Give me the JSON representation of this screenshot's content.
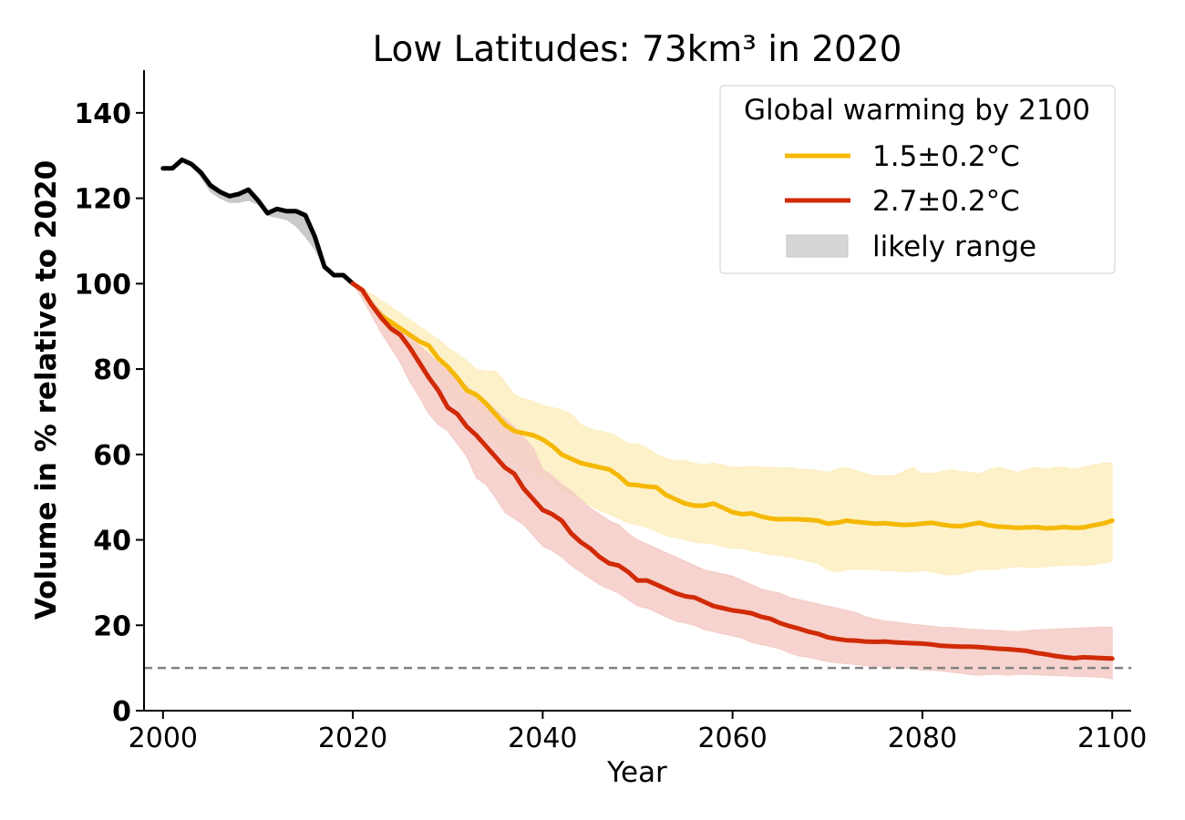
{
  "chart_data": {
    "type": "line",
    "title": "Low Latitudes: 73km³ in 2020",
    "xlabel": "Year",
    "ylabel": "Volume in % relative to 2020",
    "xlim": [
      1998,
      2102
    ],
    "ylim": [
      0,
      150
    ],
    "x_ticks": [
      2000,
      2020,
      2040,
      2060,
      2080,
      2100
    ],
    "y_ticks": [
      0,
      20,
      40,
      60,
      80,
      100,
      120,
      140
    ],
    "grid": false,
    "legend": {
      "title": "Global warming by 2100",
      "position": "top-right",
      "entries": [
        {
          "label": "1.5±0.2°C",
          "color": "#f5b800",
          "kind": "line"
        },
        {
          "label": "2.7±0.2°C",
          "color": "#d12a06",
          "kind": "line"
        },
        {
          "label": "likely range",
          "color": "#d6d6d6",
          "kind": "patch"
        }
      ]
    },
    "reference_line": {
      "y": 10,
      "color": "#808080",
      "style": "dashed"
    },
    "series": [
      {
        "color": "#000000",
        "x": [
          2000,
          2001,
          2002,
          2003,
          2004,
          2005,
          2006,
          2007,
          2008,
          2009,
          2010,
          2011,
          2012,
          2013,
          2014,
          2015,
          2016,
          2017,
          2018,
          2019,
          2020
        ],
        "values": [
          127,
          127,
          129,
          128,
          126,
          123,
          121.5,
          120.5,
          121,
          122,
          119.5,
          116.5,
          117.5,
          117,
          117,
          116,
          111,
          104,
          102,
          102,
          100
        ],
        "range_upper": [
          127,
          127,
          129,
          128,
          126,
          123,
          122,
          121,
          121.5,
          122,
          120,
          117,
          117.5,
          117,
          117,
          116,
          111,
          104,
          102,
          102,
          100
        ],
        "range_lower": [
          127,
          127,
          128.5,
          127.5,
          125,
          121.5,
          120,
          119,
          119,
          119.5,
          118.5,
          116,
          115.5,
          115,
          113.5,
          111,
          108,
          103.5,
          102,
          101.5,
          100
        ],
        "range_color": "#c9c9c9"
      },
      {
        "name": "1.5±0.2°C",
        "color": "#f5b800",
        "range_color": "#fdeec0",
        "x": [
          2020,
          2021,
          2022,
          2023,
          2024,
          2025,
          2026,
          2027,
          2028,
          2029,
          2030,
          2031,
          2032,
          2033,
          2034,
          2035,
          2036,
          2037,
          2038,
          2039,
          2040,
          2041,
          2042,
          2043,
          2044,
          2045,
          2046,
          2047,
          2048,
          2049,
          2050,
          2051,
          2052,
          2053,
          2054,
          2055,
          2056,
          2057,
          2058,
          2059,
          2060,
          2061,
          2062,
          2063,
          2064,
          2065,
          2066,
          2067,
          2068,
          2069,
          2070,
          2071,
          2072,
          2073,
          2074,
          2075,
          2076,
          2077,
          2078,
          2079,
          2080,
          2081,
          2082,
          2083,
          2084,
          2085,
          2086,
          2087,
          2088,
          2089,
          2090,
          2091,
          2092,
          2093,
          2094,
          2095,
          2096,
          2097,
          2098,
          2099,
          2100
        ],
        "values": [
          100,
          98.5,
          95,
          92.5,
          91,
          89.5,
          88,
          86.5,
          85.5,
          82.5,
          80.5,
          78,
          75,
          74,
          72,
          69.5,
          67,
          65.5,
          65,
          64.5,
          63.5,
          62,
          60,
          59,
          58,
          57.5,
          57,
          56.5,
          55,
          53,
          52.8,
          52.5,
          52.3,
          50.5,
          49.5,
          48.5,
          48,
          48,
          48.5,
          47.5,
          46.5,
          46,
          46.2,
          45.5,
          45,
          44.8,
          44.9,
          44.8,
          44.7,
          44.5,
          43.8,
          44,
          44.5,
          44.2,
          44,
          43.8,
          43.9,
          43.7,
          43.5,
          43.6,
          43.8,
          44,
          43.6,
          43.3,
          43.2,
          43.6,
          44,
          43.4,
          43.1,
          43,
          42.8,
          42.9,
          43,
          42.7,
          42.8,
          43,
          42.8,
          42.9,
          43.4,
          43.8,
          44.5
        ],
        "range_upper": [
          100,
          99,
          97.5,
          96,
          94.5,
          93,
          91.5,
          90,
          88.5,
          87,
          85,
          83.5,
          82,
          80,
          79.5,
          79.5,
          77,
          74,
          73,
          72.5,
          71.5,
          71,
          70.5,
          69.5,
          67,
          66,
          65.5,
          65,
          64,
          62.5,
          62.5,
          61.5,
          60,
          59,
          58.5,
          58.5,
          58,
          57.5,
          58,
          57.5,
          57,
          57,
          57.2,
          57,
          57,
          56.8,
          56.9,
          56.5,
          56.5,
          56.2,
          55.8,
          56.5,
          57,
          56.2,
          55.5,
          55,
          55,
          55,
          56,
          57,
          55.5,
          55.5,
          56,
          56.5,
          56,
          55.8,
          55.5,
          56.5,
          57,
          56.5,
          55.8,
          56.5,
          57,
          56.5,
          57,
          57,
          56.5,
          57,
          57.5,
          58,
          58
        ],
        "range_lower": [
          100,
          97.5,
          94,
          91,
          88.5,
          86.5,
          84.5,
          82,
          79.5,
          77,
          74.5,
          72,
          69.5,
          67.5,
          65.5,
          63,
          61,
          59,
          57,
          55.5,
          54.5,
          53,
          51.5,
          50.5,
          49.5,
          48,
          47,
          46,
          45,
          44,
          43.5,
          43,
          42,
          41,
          40.5,
          40,
          39.5,
          39.2,
          39,
          38.5,
          38,
          38,
          37.5,
          37,
          36.5,
          36.3,
          36,
          35.5,
          35,
          34.5,
          33,
          32.5,
          33,
          33.2,
          33,
          33,
          32.8,
          32.7,
          32.5,
          32.6,
          32.8,
          32.5,
          32,
          31.8,
          32,
          32.5,
          33,
          33,
          33.2,
          33.5,
          33.8,
          33.5,
          33.5,
          33.7,
          34,
          34,
          34.2,
          34,
          34.2,
          34.5,
          35
        ]
      },
      {
        "name": "2.7±0.2°C",
        "color": "#d12a06",
        "range_color": "#f5cbc6",
        "x": [
          2020,
          2021,
          2022,
          2023,
          2024,
          2025,
          2026,
          2027,
          2028,
          2029,
          2030,
          2031,
          2032,
          2033,
          2034,
          2035,
          2036,
          2037,
          2038,
          2039,
          2040,
          2041,
          2042,
          2043,
          2044,
          2045,
          2046,
          2047,
          2048,
          2049,
          2050,
          2051,
          2052,
          2053,
          2054,
          2055,
          2056,
          2057,
          2058,
          2059,
          2060,
          2061,
          2062,
          2063,
          2064,
          2065,
          2066,
          2067,
          2068,
          2069,
          2070,
          2071,
          2072,
          2073,
          2074,
          2075,
          2076,
          2077,
          2078,
          2079,
          2080,
          2081,
          2082,
          2083,
          2084,
          2085,
          2086,
          2087,
          2088,
          2089,
          2090,
          2091,
          2092,
          2093,
          2094,
          2095,
          2096,
          2097,
          2098,
          2099,
          2100
        ],
        "values": [
          100,
          98.5,
          95,
          92,
          89.5,
          88,
          85,
          81.5,
          78,
          75,
          71,
          69.5,
          66.5,
          64.5,
          62,
          59.5,
          57,
          55.5,
          52,
          49.5,
          47,
          46,
          44.5,
          41.5,
          39.5,
          38,
          36,
          34.5,
          34,
          32.5,
          30.5,
          30.5,
          29.5,
          28.5,
          27.5,
          26.8,
          26.5,
          25.5,
          24.5,
          24,
          23.5,
          23.2,
          22.8,
          22,
          21.5,
          20.5,
          19.8,
          19.2,
          18.5,
          18,
          17.2,
          16.8,
          16.5,
          16.4,
          16.2,
          16.1,
          16.2,
          16,
          15.9,
          15.8,
          15.7,
          15.5,
          15.2,
          15.1,
          15,
          15,
          14.9,
          14.7,
          14.5,
          14.4,
          14.2,
          14,
          13.5,
          13.2,
          12.8,
          12.5,
          12.3,
          12.5,
          12.4,
          12.3,
          12.2
        ],
        "range_upper": [
          100,
          98.5,
          96,
          93.5,
          91,
          89.5,
          87.5,
          85.5,
          83.5,
          81.5,
          79.5,
          77.5,
          76,
          74,
          72.5,
          70.5,
          68.5,
          66.5,
          64,
          61.5,
          56.5,
          55,
          53,
          51.5,
          49.5,
          47.5,
          46,
          44.5,
          43.5,
          41.5,
          40,
          39,
          38,
          37,
          36,
          35,
          34,
          33,
          32.5,
          32,
          31.5,
          30.5,
          29.5,
          28.5,
          28,
          27.5,
          26.5,
          26,
          25.5,
          25,
          24.5,
          24,
          23.5,
          23,
          22,
          21.5,
          21,
          20.8,
          20.5,
          20.2,
          20,
          19.8,
          19.5,
          19.5,
          19.3,
          19.1,
          19,
          18.8,
          18.8,
          18.6,
          18.5,
          18.7,
          18.9,
          19,
          19.1,
          19.2,
          19.3,
          19.4,
          19.5,
          19.6,
          19.5
        ],
        "range_lower": [
          100,
          96.5,
          92.5,
          88.5,
          85,
          81.5,
          77,
          73.5,
          69.5,
          67,
          65.5,
          62.5,
          59.5,
          54.5,
          53,
          50,
          46.5,
          45,
          43.5,
          41,
          38.5,
          37.5,
          36,
          34,
          32.5,
          31,
          29.5,
          28.5,
          27.5,
          26,
          24.5,
          24,
          23,
          22,
          21,
          20.5,
          20,
          19,
          18.5,
          18,
          17.5,
          17,
          16,
          15.5,
          15,
          14.5,
          13.5,
          12.8,
          12.5,
          12,
          11.5,
          11.2,
          11,
          10.8,
          10.5,
          10.4,
          10.2,
          10,
          10,
          9.8,
          9.5,
          9.5,
          9.3,
          9,
          8.8,
          8.5,
          8.3,
          8.5,
          8.5,
          8.3,
          8.5,
          8.5,
          8.4,
          8.3,
          8.2,
          8.2,
          8,
          8,
          7.9,
          7.8,
          7.5
        ]
      }
    ]
  }
}
